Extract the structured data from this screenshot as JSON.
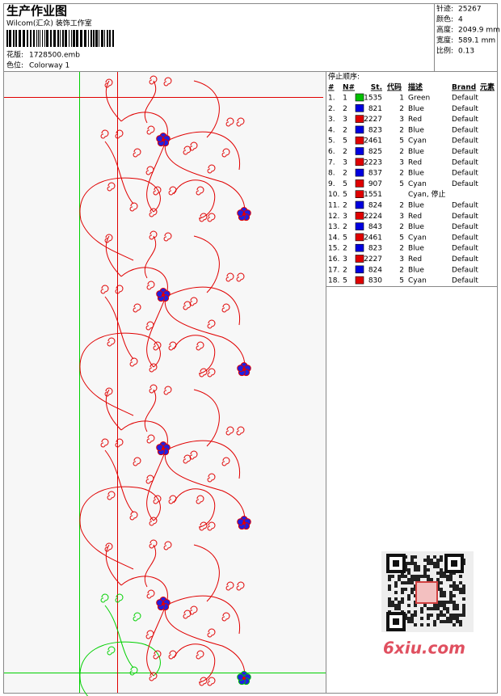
{
  "header": {
    "title": "生产作业图",
    "studio": "Wilcom(汇众) 装饰工作室",
    "design_file_label": "花版:",
    "design_file": "1728500.emb",
    "colorway_label": "色位:",
    "colorway": "Colorway 1"
  },
  "info": [
    {
      "label": "针迹:",
      "value": "25267"
    },
    {
      "label": "颜色:",
      "value": "4"
    },
    {
      "label": "高度:",
      "value": "2049.9 mm"
    },
    {
      "label": "宽度:",
      "value": "589.1 mm"
    },
    {
      "label": "比例:",
      "value": "0.13"
    }
  ],
  "table": {
    "title": "停止顺序:",
    "columns": [
      "#",
      "N#",
      "St.",
      "代码",
      "描述",
      "Brand",
      "元素"
    ],
    "rows": [
      {
        "num": "1.",
        "n": "1",
        "color": "#00c000",
        "st": "1535",
        "code": "1",
        "desc": "Green",
        "brand": "Default"
      },
      {
        "num": "2.",
        "n": "2",
        "color": "#0000e0",
        "st": "821",
        "code": "2",
        "desc": "Blue",
        "brand": "Default"
      },
      {
        "num": "3.",
        "n": "3",
        "color": "#e00000",
        "st": "2227",
        "code": "3",
        "desc": "Red",
        "brand": "Default"
      },
      {
        "num": "4.",
        "n": "2",
        "color": "#0000e0",
        "st": "823",
        "code": "2",
        "desc": "Blue",
        "brand": "Default"
      },
      {
        "num": "5.",
        "n": "5",
        "color": "#e00000",
        "st": "2461",
        "code": "5",
        "desc": "Cyan",
        "brand": "Default"
      },
      {
        "num": "6.",
        "n": "2",
        "color": "#0000e0",
        "st": "825",
        "code": "2",
        "desc": "Blue",
        "brand": "Default"
      },
      {
        "num": "7.",
        "n": "3",
        "color": "#e00000",
        "st": "2223",
        "code": "3",
        "desc": "Red",
        "brand": "Default"
      },
      {
        "num": "8.",
        "n": "2",
        "color": "#0000e0",
        "st": "837",
        "code": "2",
        "desc": "Blue",
        "brand": "Default"
      },
      {
        "num": "9.",
        "n": "5",
        "color": "#e00000",
        "st": "907",
        "code": "5",
        "desc": "Cyan",
        "brand": "Default"
      },
      {
        "num": "10.",
        "n": "5",
        "color": "#e00000",
        "st": "1551",
        "desc": "Cyan, 停止"
      },
      {
        "num": "11.",
        "n": "2",
        "color": "#0000e0",
        "st": "824",
        "code": "2",
        "desc": "Blue",
        "brand": "Default"
      },
      {
        "num": "12.",
        "n": "3",
        "color": "#e00000",
        "st": "2224",
        "code": "3",
        "desc": "Red",
        "brand": "Default"
      },
      {
        "num": "13.",
        "n": "2",
        "color": "#0000e0",
        "st": "843",
        "code": "2",
        "desc": "Blue",
        "brand": "Default"
      },
      {
        "num": "14.",
        "n": "5",
        "color": "#e00000",
        "st": "2461",
        "code": "5",
        "desc": "Cyan",
        "brand": "Default"
      },
      {
        "num": "15.",
        "n": "2",
        "color": "#0000e0",
        "st": "823",
        "code": "2",
        "desc": "Blue",
        "brand": "Default"
      },
      {
        "num": "16.",
        "n": "3",
        "color": "#e00000",
        "st": "2227",
        "code": "3",
        "desc": "Red",
        "brand": "Default"
      },
      {
        "num": "17.",
        "n": "2",
        "color": "#0000e0",
        "st": "824",
        "code": "2",
        "desc": "Blue",
        "brand": "Default"
      },
      {
        "num": "18.",
        "n": "5",
        "color": "#e00000",
        "st": "830",
        "code": "5",
        "desc": "Cyan",
        "brand": "Default"
      }
    ]
  },
  "watermark": "6xiu.com"
}
